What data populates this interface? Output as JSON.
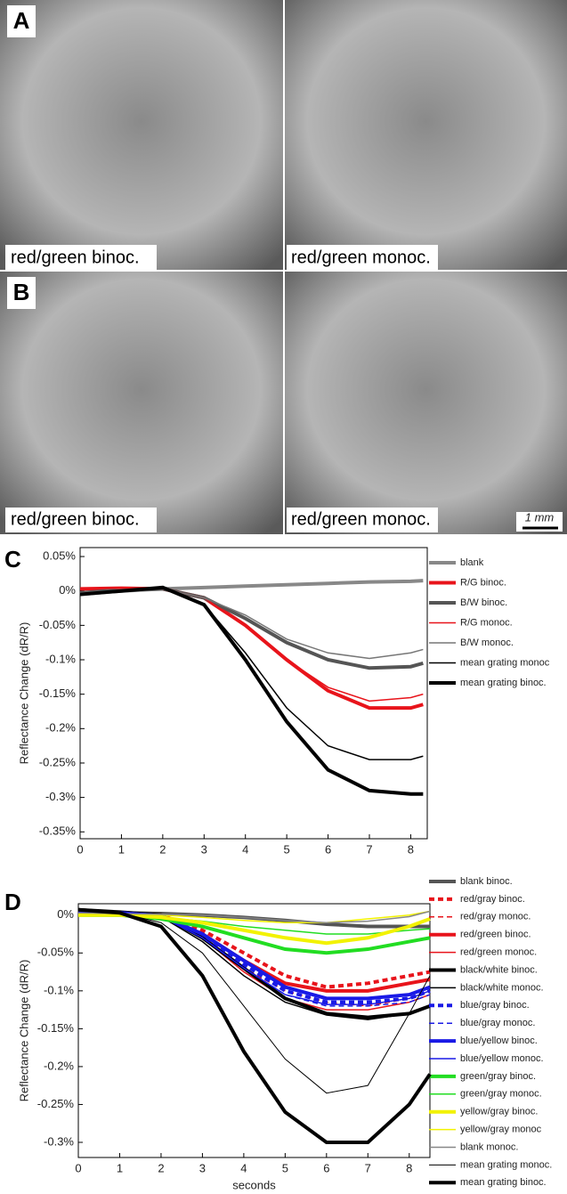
{
  "panels": [
    {
      "label": "A",
      "captions": [
        "red/green binoc.",
        "red/green monoc."
      ]
    },
    {
      "label": "B",
      "captions": [
        "red/green binoc.",
        "red/green monoc."
      ],
      "scale_bar": "1 mm"
    }
  ],
  "chart_data": [
    {
      "type": "line",
      "panel_label": "C",
      "ylabel": "Reflectance Change (dR/R)",
      "x": [
        0,
        1,
        2,
        3,
        4,
        5,
        6,
        7,
        8,
        8.3
      ],
      "xlim": [
        0,
        8.4
      ],
      "xticks": [
        0,
        1,
        2,
        3,
        4,
        5,
        6,
        7,
        8
      ],
      "ylim": [
        -0.36,
        0.063
      ],
      "yticks": [
        {
          "value": 0.05,
          "label": "0.05%"
        },
        {
          "value": 0,
          "label": "0%"
        },
        {
          "value": -0.05,
          "label": "-0.05%"
        },
        {
          "value": -0.1,
          "label": "-0.1%"
        },
        {
          "value": -0.15,
          "label": "-0.15%"
        },
        {
          "value": -0.2,
          "label": "-0.2%"
        },
        {
          "value": -0.25,
          "label": "-0.25%"
        },
        {
          "value": -0.3,
          "label": "-0.3%"
        },
        {
          "value": -0.35,
          "label": "-0.35%"
        }
      ],
      "series": [
        {
          "name": "blank",
          "color": "#888888",
          "width": 4,
          "dash": false,
          "values": [
            -0.005,
            0,
            0.003,
            0.005,
            0.007,
            0.009,
            0.011,
            0.013,
            0.014,
            0.015
          ]
        },
        {
          "name": "R/G binoc.",
          "color": "#e8141b",
          "width": 4,
          "dash": false,
          "values": [
            0.003,
            0.004,
            0.003,
            -0.01,
            -0.05,
            -0.1,
            -0.145,
            -0.17,
            -0.17,
            -0.165
          ]
        },
        {
          "name": "B/W binoc.",
          "color": "#555555",
          "width": 4,
          "dash": false,
          "values": [
            -0.003,
            0.002,
            0.003,
            -0.01,
            -0.04,
            -0.075,
            -0.1,
            -0.112,
            -0.11,
            -0.105
          ]
        },
        {
          "name": "R/G monoc.",
          "color": "#e8141b",
          "width": 1.5,
          "dash": false,
          "values": [
            0.003,
            0.004,
            0.003,
            -0.01,
            -0.05,
            -0.1,
            -0.14,
            -0.16,
            -0.155,
            -0.15
          ]
        },
        {
          "name": "B/W monoc.",
          "color": "#777777",
          "width": 1.5,
          "dash": false,
          "values": [
            -0.003,
            0.002,
            0.003,
            -0.01,
            -0.035,
            -0.07,
            -0.09,
            -0.098,
            -0.09,
            -0.085
          ]
        },
        {
          "name": "mean grating monoc",
          "color": "#000000",
          "width": 1.5,
          "dash": false,
          "values": [
            -0.005,
            0,
            0.005,
            -0.02,
            -0.09,
            -0.17,
            -0.225,
            -0.245,
            -0.245,
            -0.24
          ]
        },
        {
          "name": "mean grating binoc.",
          "color": "#000000",
          "width": 4,
          "dash": false,
          "values": [
            -0.005,
            0,
            0.005,
            -0.02,
            -0.1,
            -0.19,
            -0.26,
            -0.29,
            -0.295,
            -0.295
          ]
        }
      ]
    },
    {
      "type": "line",
      "panel_label": "D",
      "ylabel": "Reflectance Change (dR/R)",
      "xlabel": "seconds",
      "x": [
        0,
        1,
        2,
        3,
        4,
        5,
        6,
        7,
        8,
        8.5
      ],
      "xlim": [
        0,
        8.5
      ],
      "xticks": [
        0,
        1,
        2,
        3,
        4,
        5,
        6,
        7,
        8
      ],
      "ylim": [
        -0.32,
        0.015
      ],
      "yticks": [
        {
          "value": 0,
          "label": "0%"
        },
        {
          "value": -0.05,
          "label": "-0.05%"
        },
        {
          "value": -0.1,
          "label": "-0.1%"
        },
        {
          "value": -0.15,
          "label": "-0.15%"
        },
        {
          "value": -0.2,
          "label": "-0.2%"
        },
        {
          "value": -0.25,
          "label": "-0.25%"
        },
        {
          "value": -0.3,
          "label": "-0.3%"
        }
      ],
      "series": [
        {
          "name": "blank binoc.",
          "color": "#555555",
          "width": 4,
          "dash": false,
          "values": [
            0.005,
            0.003,
            0.002,
            0,
            -0.003,
            -0.007,
            -0.012,
            -0.015,
            -0.015,
            -0.015
          ]
        },
        {
          "name": "red/gray binoc.",
          "color": "#e8141b",
          "width": 4,
          "dash": true,
          "values": [
            0.005,
            0.003,
            0,
            -0.02,
            -0.05,
            -0.08,
            -0.095,
            -0.09,
            -0.08,
            -0.075
          ]
        },
        {
          "name": "red/gray monoc.",
          "color": "#e8141b",
          "width": 1.5,
          "dash": true,
          "values": [
            0.005,
            0.003,
            -0.002,
            -0.03,
            -0.07,
            -0.1,
            -0.115,
            -0.12,
            -0.11,
            -0.1
          ]
        },
        {
          "name": "red/green binoc.",
          "color": "#e8141b",
          "width": 4,
          "dash": false,
          "values": [
            0.005,
            0.003,
            -0.001,
            -0.025,
            -0.06,
            -0.09,
            -0.1,
            -0.1,
            -0.09,
            -0.085
          ]
        },
        {
          "name": "red/green monoc.",
          "color": "#e8141b",
          "width": 1.5,
          "dash": false,
          "values": [
            0.005,
            0.003,
            -0.002,
            -0.03,
            -0.075,
            -0.11,
            -0.125,
            -0.125,
            -0.115,
            -0.105
          ]
        },
        {
          "name": "black/white binoc.",
          "color": "#000000",
          "width": 4,
          "dash": false,
          "values": [
            0.007,
            0.004,
            0,
            -0.03,
            -0.07,
            -0.11,
            -0.13,
            -0.135,
            -0.13,
            -0.12
          ]
        },
        {
          "name": "black/white monoc.",
          "color": "#000000",
          "width": 1.5,
          "dash": false,
          "values": [
            0.007,
            0.004,
            -0.002,
            -0.035,
            -0.08,
            -0.115,
            -0.132,
            -0.138,
            -0.13,
            -0.12
          ]
        },
        {
          "name": "blue/gray binoc.",
          "color": "#1a1ae6",
          "width": 4,
          "dash": true,
          "values": [
            0.005,
            0.003,
            -0.001,
            -0.025,
            -0.065,
            -0.1,
            -0.115,
            -0.115,
            -0.11,
            -0.1
          ]
        },
        {
          "name": "blue/gray monoc.",
          "color": "#1a1ae6",
          "width": 1.5,
          "dash": true,
          "values": [
            0.005,
            0.003,
            -0.002,
            -0.03,
            -0.07,
            -0.105,
            -0.12,
            -0.12,
            -0.115,
            -0.105
          ]
        },
        {
          "name": "blue/yellow binoc.",
          "color": "#1a1ae6",
          "width": 4,
          "dash": false,
          "values": [
            0.005,
            0.003,
            -0.001,
            -0.025,
            -0.06,
            -0.095,
            -0.11,
            -0.11,
            -0.105,
            -0.095
          ]
        },
        {
          "name": "blue/yellow monoc.",
          "color": "#1a1ae6",
          "width": 1.5,
          "dash": false,
          "values": [
            0.005,
            0.003,
            -0.002,
            -0.03,
            -0.07,
            -0.105,
            -0.118,
            -0.118,
            -0.11,
            -0.1
          ]
        },
        {
          "name": "green/gray binoc.",
          "color": "#22dd22",
          "width": 4,
          "dash": false,
          "values": [
            0,
            0,
            -0.005,
            -0.015,
            -0.03,
            -0.045,
            -0.05,
            -0.045,
            -0.035,
            -0.03
          ]
        },
        {
          "name": "green/gray monoc.",
          "color": "#22dd22",
          "width": 1.5,
          "dash": false,
          "values": [
            0,
            0,
            -0.003,
            -0.008,
            -0.015,
            -0.02,
            -0.025,
            -0.025,
            -0.02,
            -0.018
          ]
        },
        {
          "name": "yellow/gray binoc.",
          "color": "#f2f200",
          "width": 4,
          "dash": false,
          "values": [
            0,
            0,
            -0.003,
            -0.01,
            -0.02,
            -0.03,
            -0.037,
            -0.03,
            -0.015,
            -0.005
          ]
        },
        {
          "name": "yellow/gray monoc",
          "color": "#f2f200",
          "width": 1.5,
          "dash": false,
          "values": [
            0,
            0,
            0,
            -0.003,
            -0.007,
            -0.01,
            -0.01,
            -0.005,
            0,
            0.005
          ]
        },
        {
          "name": "blank monoc.",
          "color": "#888888",
          "width": 1.5,
          "dash": false,
          "values": [
            0.003,
            0.002,
            0.001,
            0,
            -0.003,
            -0.007,
            -0.01,
            -0.008,
            -0.002,
            0.005
          ]
        },
        {
          "name": "mean grating monoc.",
          "color": "#000000",
          "width": 1,
          "dash": false,
          "values": [
            0.007,
            0.003,
            -0.01,
            -0.05,
            -0.12,
            -0.19,
            -0.235,
            -0.225,
            -0.13,
            -0.08
          ]
        },
        {
          "name": "mean grating binoc.",
          "color": "#000000",
          "width": 4,
          "dash": false,
          "values": [
            0.007,
            0.003,
            -0.015,
            -0.08,
            -0.18,
            -0.26,
            -0.3,
            -0.3,
            -0.25,
            -0.21
          ]
        }
      ]
    }
  ]
}
